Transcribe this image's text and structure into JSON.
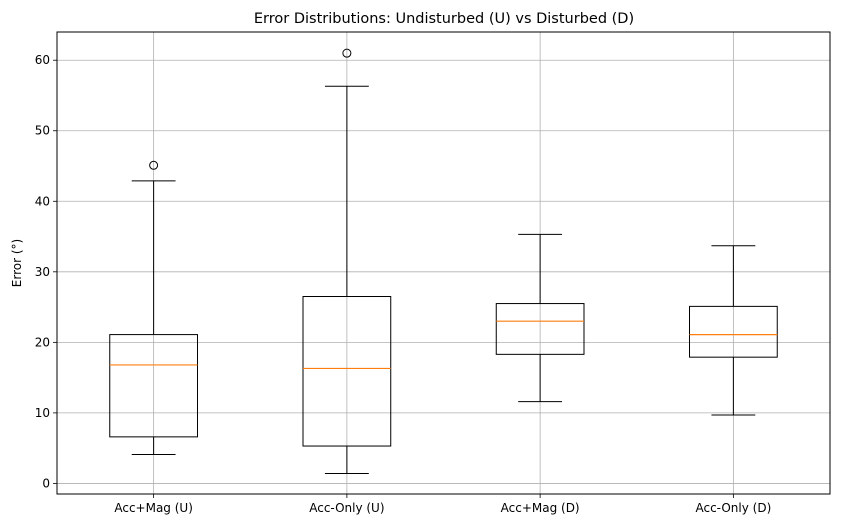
{
  "chart_data": {
    "type": "boxplot",
    "title": "Error Distributions: Undisturbed (U) vs Disturbed (D)",
    "xlabel": "",
    "ylabel": "Error (°)",
    "ylim": [
      -1.5,
      64
    ],
    "yticks": [
      0,
      10,
      20,
      30,
      40,
      50,
      60
    ],
    "grid": true,
    "categories": [
      "Acc+Mag (U)",
      "Acc-Only (U)",
      "Acc+Mag (D)",
      "Acc-Only (D)"
    ],
    "boxes": [
      {
        "whisker_low": 4.1,
        "q1": 6.6,
        "median": 16.8,
        "q3": 21.1,
        "whisker_high": 42.9,
        "outliers": [
          45.1
        ]
      },
      {
        "whisker_low": 1.4,
        "q1": 5.3,
        "median": 16.3,
        "q3": 26.5,
        "whisker_high": 56.3,
        "outliers": [
          61.0
        ]
      },
      {
        "whisker_low": 11.6,
        "q1": 18.3,
        "median": 23.0,
        "q3": 25.5,
        "whisker_high": 35.3,
        "outliers": []
      },
      {
        "whisker_low": 9.7,
        "q1": 17.9,
        "median": 21.1,
        "q3": 25.1,
        "whisker_high": 33.7,
        "outliers": []
      }
    ],
    "colors": {
      "box": "#000000",
      "median": "#ff7f0e",
      "grid": "#b0b0b0"
    }
  }
}
